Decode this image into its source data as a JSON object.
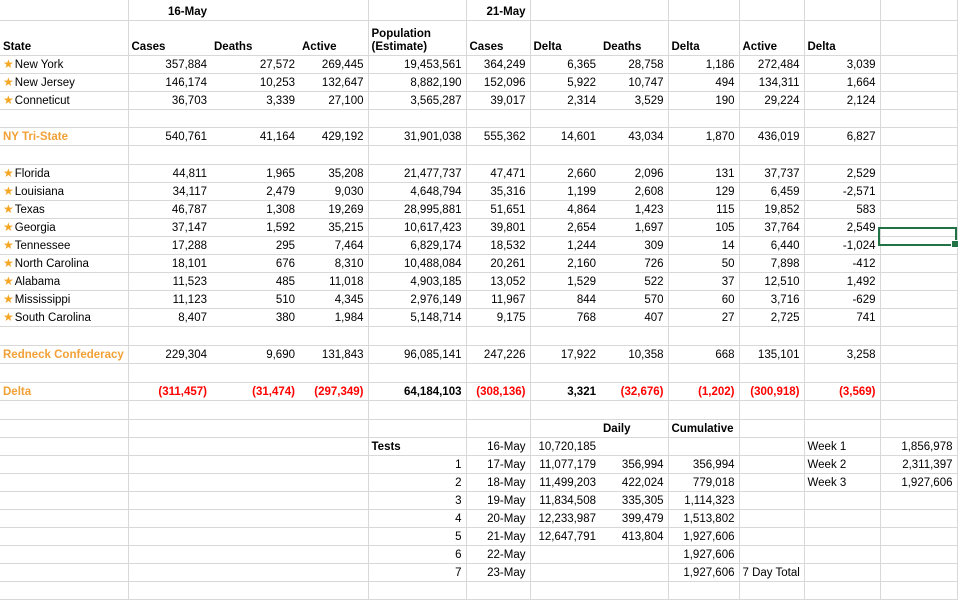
{
  "sheet": {
    "period_headers": {
      "left": "16-May",
      "right": "21-May"
    },
    "columns": {
      "state": "State",
      "cases": "Cases",
      "deaths": "Deaths",
      "active": "Active",
      "population_line1": "Population",
      "population_line2": "(Estimate)",
      "delta": "Delta"
    },
    "tristate_states": [
      {
        "name": "New York",
        "values": [
          "357,884",
          "27,572",
          "269,445",
          "19,453,561",
          "364,249",
          "6,365",
          "28,758",
          "1,186",
          "272,484",
          "3,039"
        ]
      },
      {
        "name": "New Jersey",
        "values": [
          "146,174",
          "10,253",
          "132,647",
          "8,882,190",
          "152,096",
          "5,922",
          "10,747",
          "494",
          "134,311",
          "1,664"
        ]
      },
      {
        "name": "Conneticut",
        "values": [
          "36,703",
          "3,339",
          "27,100",
          "3,565,287",
          "39,017",
          "2,314",
          "3,529",
          "190",
          "29,224",
          "2,124"
        ]
      }
    ],
    "tristate_total": {
      "label": "NY Tri-State",
      "values": [
        "540,761",
        "41,164",
        "429,192",
        "31,901,038",
        "555,362",
        "14,601",
        "43,034",
        "1,870",
        "436,019",
        "6,827"
      ]
    },
    "southern_states": [
      {
        "name": "Florida",
        "values": [
          "44,811",
          "1,965",
          "35,208",
          "21,477,737",
          "47,471",
          "2,660",
          "2,096",
          "131",
          "37,737",
          "2,529"
        ]
      },
      {
        "name": "Louisiana",
        "values": [
          "34,117",
          "2,479",
          "9,030",
          "4,648,794",
          "35,316",
          "1,199",
          "2,608",
          "129",
          "6,459",
          "-2,571"
        ]
      },
      {
        "name": "Texas",
        "values": [
          "46,787",
          "1,308",
          "19,269",
          "28,995,881",
          "51,651",
          "4,864",
          "1,423",
          "115",
          "19,852",
          "583"
        ]
      },
      {
        "name": "Georgia",
        "values": [
          "37,147",
          "1,592",
          "35,215",
          "10,617,423",
          "39,801",
          "2,654",
          "1,697",
          "105",
          "37,764",
          "2,549"
        ]
      },
      {
        "name": "Tennessee",
        "values": [
          "17,288",
          "295",
          "7,464",
          "6,829,174",
          "18,532",
          "1,244",
          "309",
          "14",
          "6,440",
          "-1,024"
        ]
      },
      {
        "name": "North Carolina",
        "values": [
          "18,101",
          "676",
          "8,310",
          "10,488,084",
          "20,261",
          "2,160",
          "726",
          "50",
          "7,898",
          "-412"
        ]
      },
      {
        "name": "Alabama",
        "values": [
          "11,523",
          "485",
          "11,018",
          "4,903,185",
          "13,052",
          "1,529",
          "522",
          "37",
          "12,510",
          "1,492"
        ]
      },
      {
        "name": "Mississippi",
        "values": [
          "11,123",
          "510",
          "4,345",
          "2,976,149",
          "11,967",
          "844",
          "570",
          "60",
          "3,716",
          "-629"
        ]
      },
      {
        "name": "South Carolina",
        "values": [
          "8,407",
          "380",
          "1,984",
          "5,148,714",
          "9,175",
          "768",
          "407",
          "27",
          "2,725",
          "741"
        ]
      }
    ],
    "southern_total": {
      "label": "Redneck Confederacy",
      "values": [
        "229,304",
        "9,690",
        "131,843",
        "96,085,141",
        "247,226",
        "17,922",
        "10,358",
        "668",
        "135,101",
        "3,258"
      ]
    },
    "delta_row": {
      "label": "Delta",
      "values": [
        "(311,457)",
        "(31,474)",
        "(297,349)",
        "64,184,103",
        "(308,136)",
        "3,321",
        "(32,676)",
        "(1,202)",
        "(300,918)",
        "(3,569)"
      ],
      "negative_flags": [
        true,
        true,
        true,
        false,
        true,
        false,
        true,
        true,
        true,
        true
      ]
    },
    "tests": {
      "label": "Tests",
      "daily_header": "Daily",
      "cumulative_header": "Cumulative",
      "rows": [
        {
          "index": "",
          "date": "16-May",
          "total": "10,720,185",
          "daily": "",
          "cumulative": "",
          "note": "",
          "week_label": "Week 1",
          "week_value": "1,856,978"
        },
        {
          "index": "1",
          "date": "17-May",
          "total": "11,077,179",
          "daily": "356,994",
          "cumulative": "356,994",
          "note": "",
          "week_label": "Week 2",
          "week_value": "2,311,397"
        },
        {
          "index": "2",
          "date": "18-May",
          "total": "11,499,203",
          "daily": "422,024",
          "cumulative": "779,018",
          "note": "",
          "week_label": "Week 3",
          "week_value": "1,927,606"
        },
        {
          "index": "3",
          "date": "19-May",
          "total": "11,834,508",
          "daily": "335,305",
          "cumulative": "1,114,323",
          "note": "",
          "week_label": "",
          "week_value": ""
        },
        {
          "index": "4",
          "date": "20-May",
          "total": "12,233,987",
          "daily": "399,479",
          "cumulative": "1,513,802",
          "note": "",
          "week_label": "",
          "week_value": ""
        },
        {
          "index": "5",
          "date": "21-May",
          "total": "12,647,791",
          "daily": "413,804",
          "cumulative": "1,927,606",
          "note": "",
          "week_label": "",
          "week_value": ""
        },
        {
          "index": "6",
          "date": "22-May",
          "total": "",
          "daily": "",
          "cumulative": "1,927,606",
          "note": "",
          "week_label": "",
          "week_value": ""
        },
        {
          "index": "7",
          "date": "23-May",
          "total": "",
          "daily": "",
          "cumulative": "1,927,606",
          "note": "7 Day Total",
          "week_label": "",
          "week_value": ""
        }
      ]
    },
    "selected_cell": {
      "state_row": "North Carolina",
      "column": "after-last-delta",
      "value": ""
    },
    "colors": {
      "accent_orange": "#F2A136",
      "star_orange": "#F5A623",
      "negative_red": "#FF0000",
      "selection_green": "#217346",
      "gridline": "#D8D8D8"
    }
  }
}
